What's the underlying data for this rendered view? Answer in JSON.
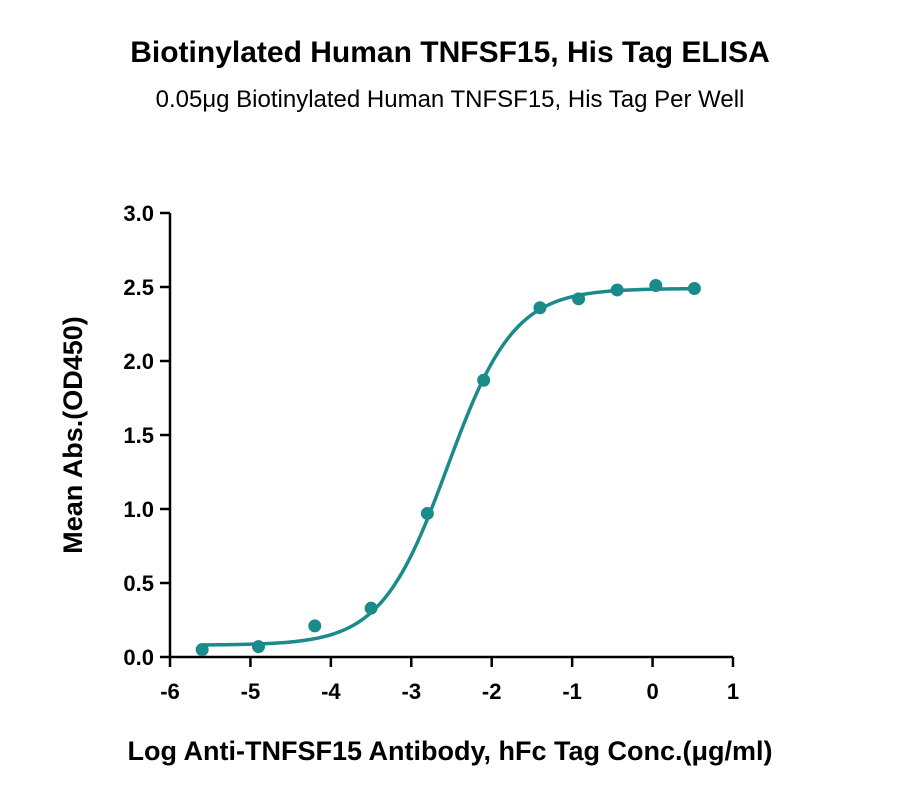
{
  "chart_data": {
    "type": "scatter",
    "title": "Biotinylated Human TNFSF15, His Tag ELISA",
    "subtitle": "0.05μg Biotinylated Human TNFSF15, His Tag Per Well",
    "xlabel": "Log Anti-TNFSF15 Antibody, hFc Tag Conc.(μg/ml)",
    "ylabel": "Mean Abs.(OD450)",
    "xlim": [
      -6,
      1
    ],
    "ylim": [
      0,
      3
    ],
    "xticks": [
      "-6",
      "-5",
      "-4",
      "-3",
      "-2",
      "-1",
      "0",
      "1"
    ],
    "yticks": [
      "0.0",
      "0.5",
      "1.0",
      "1.5",
      "2.0",
      "2.5",
      "3.0"
    ],
    "grid": false,
    "series": [
      {
        "color": "#1a8a8a",
        "points": [
          {
            "x": -5.6,
            "y": 0.05
          },
          {
            "x": -4.9,
            "y": 0.07
          },
          {
            "x": -4.2,
            "y": 0.21
          },
          {
            "x": -3.5,
            "y": 0.33
          },
          {
            "x": -2.8,
            "y": 0.97
          },
          {
            "x": -2.1,
            "y": 1.87
          },
          {
            "x": -1.4,
            "y": 2.36
          },
          {
            "x": -0.92,
            "y": 2.42
          },
          {
            "x": -0.44,
            "y": 2.48
          },
          {
            "x": 0.04,
            "y": 2.51
          },
          {
            "x": 0.52,
            "y": 2.49
          }
        ],
        "fit": {
          "bottom": 0.08,
          "top": 2.49,
          "logEC50": -2.55,
          "hill": 1.05,
          "x_from": -5.6,
          "x_to": 0.52
        }
      }
    ]
  }
}
